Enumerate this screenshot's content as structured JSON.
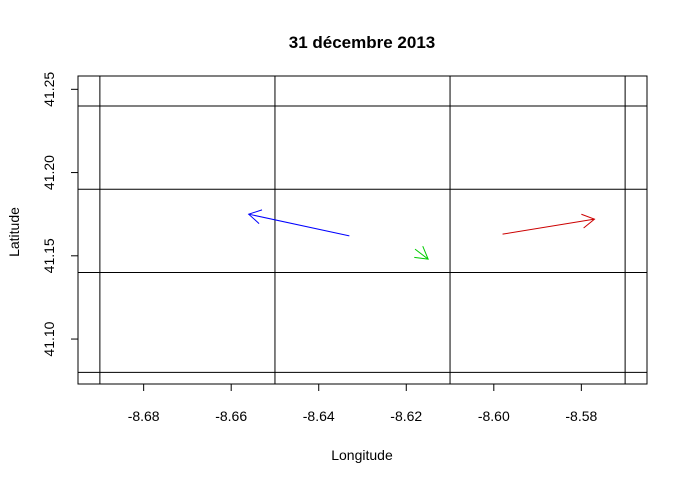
{
  "chart_data": {
    "type": "scatter",
    "title": "31 décembre 2013",
    "xlabel": "Longitude",
    "ylabel": "Latitude",
    "xlim": [
      -8.695,
      -8.565
    ],
    "ylim": [
      41.073,
      41.258
    ],
    "x_ticks": [
      -8.68,
      -8.66,
      -8.64,
      -8.62,
      -8.6,
      -8.58
    ],
    "x_tick_labels": [
      "-8.68",
      "-8.66",
      "-8.64",
      "-8.62",
      "-8.60",
      "-8.58"
    ],
    "y_ticks": [
      41.1,
      41.15,
      41.2,
      41.25
    ],
    "y_tick_labels": [
      "41.10",
      "41.15",
      "41.20",
      "41.25"
    ],
    "grid_x": [
      -8.69,
      -8.65,
      -8.61,
      -8.57
    ],
    "grid_y": [
      41.08,
      41.14,
      41.19,
      41.24
    ],
    "grid": true,
    "legend": "none",
    "arrows": [
      {
        "color": "#0000ff",
        "x0": -8.633,
        "y0": 41.162,
        "x1": -8.656,
        "y1": 41.175
      },
      {
        "color": "#00cc00",
        "x0": -8.618,
        "y0": 41.154,
        "x1": -8.615,
        "y1": 41.148
      },
      {
        "color": "#cc0000",
        "x0": -8.598,
        "y0": 41.163,
        "x1": -8.577,
        "y1": 41.172
      }
    ]
  }
}
